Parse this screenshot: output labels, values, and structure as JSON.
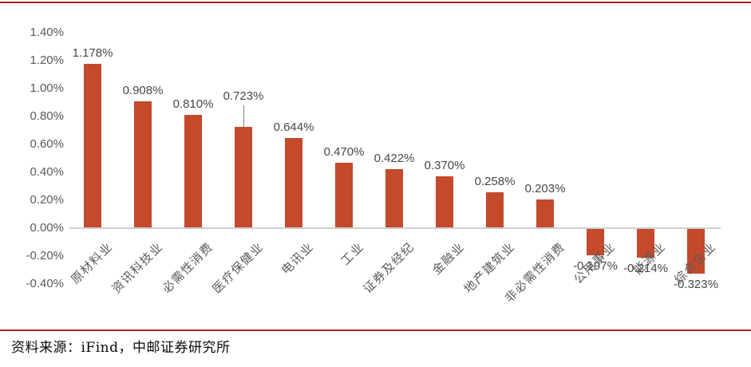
{
  "chart_data": {
    "type": "bar",
    "title": "",
    "categories": [
      "原材料业",
      "资讯科技业",
      "必需性消费",
      "医疗保健业",
      "电讯业",
      "工业",
      "证券及经纪",
      "金融业",
      "地产建筑业",
      "非必需性消费",
      "公用事业",
      "能源业",
      "综合企业"
    ],
    "values": [
      1.178,
      0.908,
      0.81,
      0.723,
      0.644,
      0.47,
      0.422,
      0.37,
      0.258,
      0.203,
      -0.197,
      -0.214,
      -0.323
    ],
    "data_labels": [
      "1.178%",
      "0.908%",
      "0.810%",
      "0.723%",
      "0.644%",
      "0.470%",
      "0.422%",
      "0.370%",
      "0.258%",
      "0.203%",
      "-0.197%",
      "-0.214%",
      "-0.323%"
    ],
    "y_tick_labels": [
      "1.40%",
      "1.20%",
      "1.00%",
      "0.80%",
      "0.60%",
      "0.40%",
      "0.20%",
      "0.00%",
      "-0.20%",
      "-0.40%"
    ],
    "ylim": [
      -0.4,
      1.4
    ],
    "y_tick_step": 0.2,
    "y_unit": "percent",
    "grid": false,
    "legend": "none",
    "bar_color": "#C5492B",
    "axis_line_color": "#CFCFCF",
    "tick_label_color": "#595959",
    "data_label_color": "#474747",
    "leader_line_index": 3
  },
  "footer": {
    "divider_color": "#B01E23",
    "source_text": "资料来源：iFind，中邮证券研究所"
  }
}
